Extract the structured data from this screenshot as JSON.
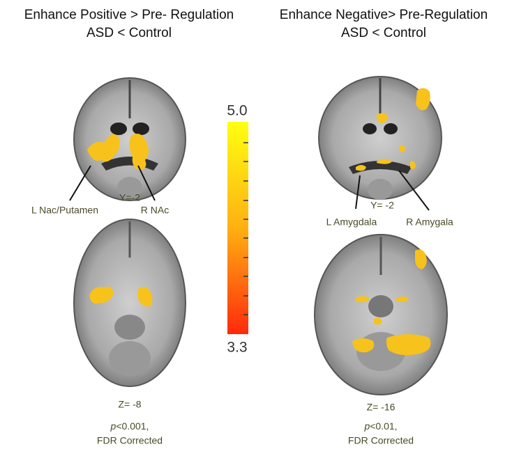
{
  "panels": [
    {
      "title": "Enhance Positive > Pre- Regulation",
      "subtitle": "ASD < Control",
      "coronal_label": "Y=-2",
      "left_label": "L Nac/Putamen",
      "right_label": "R NAc",
      "axial_label": "Z= -8",
      "p_symbol": "p",
      "p_value": "<0.001,",
      "correction": "FDR Corrected"
    },
    {
      "title": "Enhance Negative> Pre-Regulation",
      "subtitle": "ASD < Control",
      "coronal_label": "Y= -2",
      "left_label": "L Amygdala",
      "right_label": "R Amygala",
      "axial_label": "Z= -16",
      "p_symbol": "p",
      "p_value": "<0.01,",
      "correction": "FDR Corrected"
    }
  ],
  "colorbar": {
    "max_label": "5.0",
    "min_label": "3.3"
  }
}
